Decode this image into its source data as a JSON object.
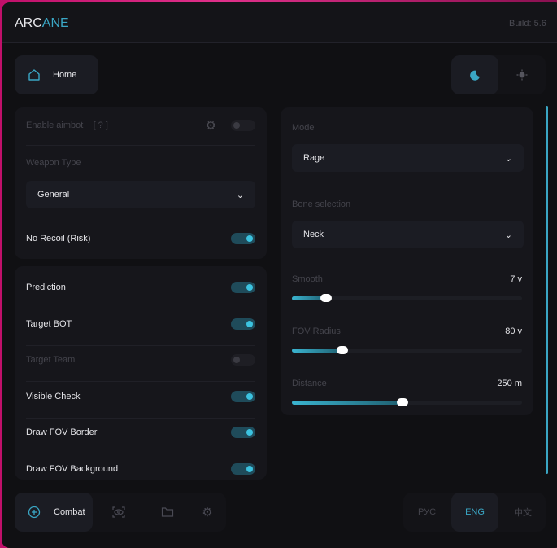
{
  "header": {
    "logo_part1": "ARC",
    "logo_part2": "ANE",
    "build": "Build: 5.6"
  },
  "nav": {
    "home_label": "Home",
    "theme": {
      "dark_icon": "moon-icon",
      "light_icon": "sun-icon",
      "active": "dark"
    }
  },
  "left_panel_1": {
    "enable_aimbot": {
      "label": "Enable aimbot",
      "help": "[ ? ]",
      "enabled": false
    },
    "weapon_type": {
      "label": "Weapon Type",
      "value": "General"
    },
    "no_recoil": {
      "label": "No Recoil (Risk)",
      "enabled": true
    }
  },
  "left_panel_2": {
    "toggles": [
      {
        "label": "Prediction",
        "enabled": true
      },
      {
        "label": "Target BOT",
        "enabled": true
      },
      {
        "label": "Target Team",
        "enabled": false
      },
      {
        "label": "Visible Check",
        "enabled": true
      },
      {
        "label": "Draw FOV Border",
        "enabled": true
      },
      {
        "label": "Draw FOV Background",
        "enabled": true
      }
    ]
  },
  "right_panel": {
    "mode": {
      "label": "Mode",
      "value": "Rage"
    },
    "bone": {
      "label": "Bone selection",
      "value": "Neck"
    },
    "sliders": [
      {
        "label": "Smooth",
        "value": "7 v",
        "fraction": 0.15
      },
      {
        "label": "FOV Radius",
        "value": "80 v",
        "fraction": 0.22
      },
      {
        "label": "Distance",
        "value": "250 m",
        "fraction": 0.48
      }
    ]
  },
  "bottom": {
    "tabs": {
      "combat_label": "Combat",
      "icons": [
        "crosshair-icon",
        "eye-scan-icon",
        "folder-icon",
        "gear-icon"
      ]
    },
    "languages": [
      {
        "label": "РУС",
        "active": false
      },
      {
        "label": "ENG",
        "active": true
      },
      {
        "label": "中文",
        "active": false
      }
    ]
  },
  "colors": {
    "accent": "#3aa6c4",
    "background": "#101013",
    "card": "#16161b"
  }
}
